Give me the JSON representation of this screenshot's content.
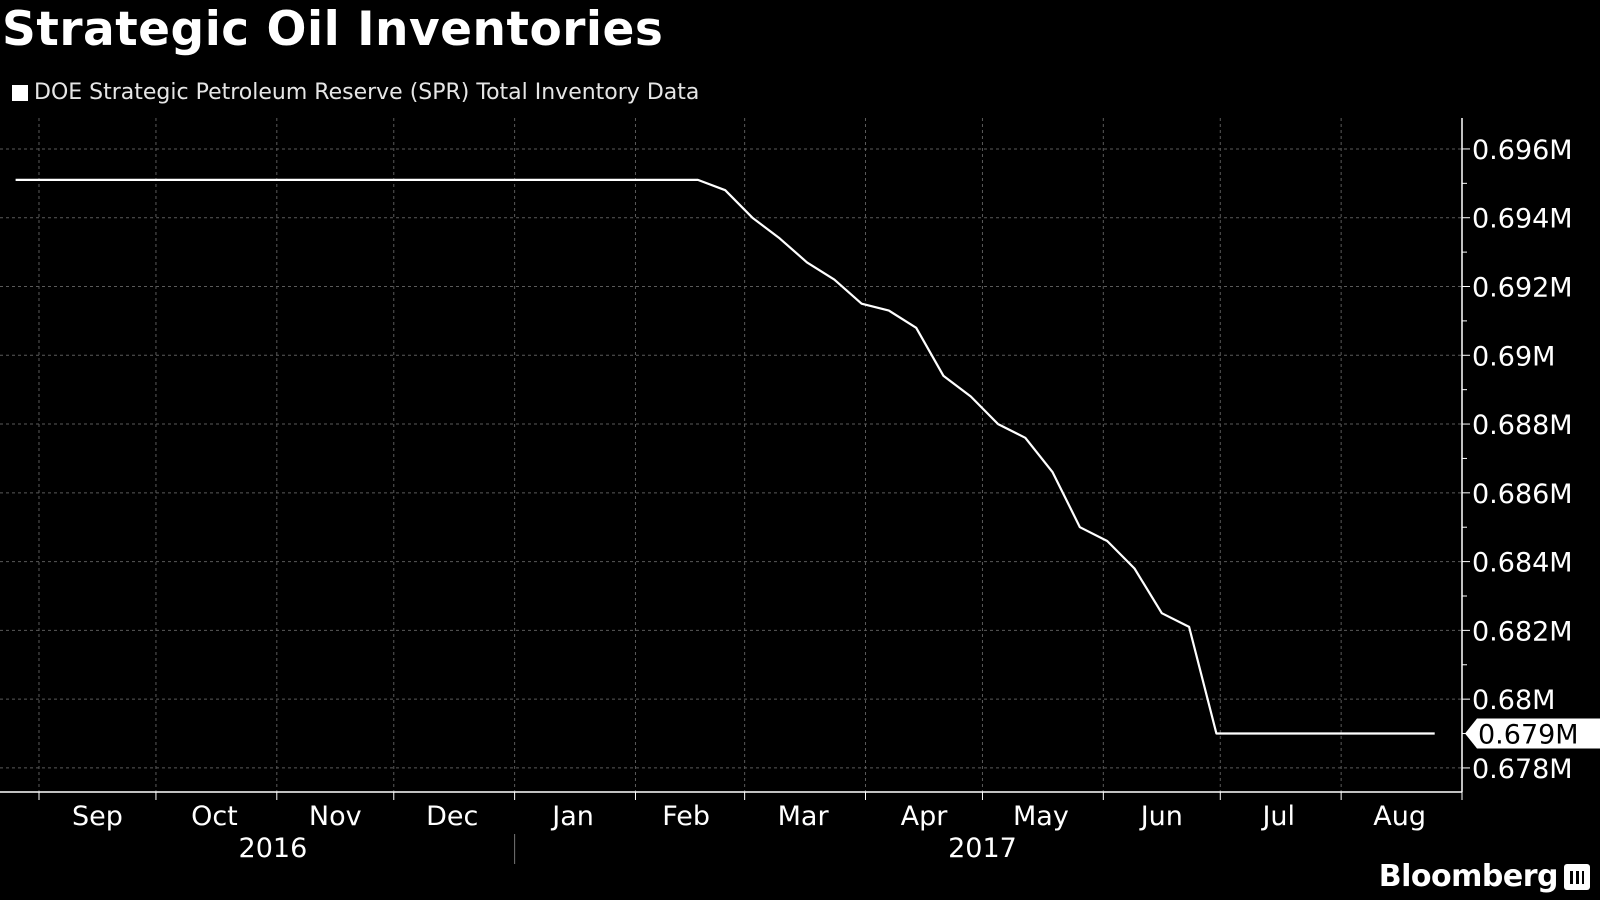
{
  "chart_data": {
    "type": "line",
    "title": "Strategic Oil Inventories",
    "legend_position": "top-left",
    "grid": true,
    "series": [
      {
        "name": "DOE Strategic Petroleum Reserve (SPR) Total Inventory Data",
        "color": "#ffffff",
        "points": [
          {
            "x": "2016-08-26",
            "y": 0.6951
          },
          {
            "x": "2017-02-17",
            "y": 0.6951
          },
          {
            "x": "2017-02-24",
            "y": 0.6948
          },
          {
            "x": "2017-03-03",
            "y": 0.694
          },
          {
            "x": "2017-03-10",
            "y": 0.6934
          },
          {
            "x": "2017-03-17",
            "y": 0.6927
          },
          {
            "x": "2017-03-24",
            "y": 0.6922
          },
          {
            "x": "2017-03-31",
            "y": 0.6915
          },
          {
            "x": "2017-04-07",
            "y": 0.6913
          },
          {
            "x": "2017-04-14",
            "y": 0.6908
          },
          {
            "x": "2017-04-21",
            "y": 0.6894
          },
          {
            "x": "2017-04-28",
            "y": 0.6888
          },
          {
            "x": "2017-05-05",
            "y": 0.688
          },
          {
            "x": "2017-05-12",
            "y": 0.6876
          },
          {
            "x": "2017-05-19",
            "y": 0.6866
          },
          {
            "x": "2017-05-26",
            "y": 0.685
          },
          {
            "x": "2017-06-02",
            "y": 0.6846
          },
          {
            "x": "2017-06-09",
            "y": 0.6838
          },
          {
            "x": "2017-06-16",
            "y": 0.6825
          },
          {
            "x": "2017-06-23",
            "y": 0.6821
          },
          {
            "x": "2017-06-30",
            "y": 0.679
          },
          {
            "x": "2017-08-25",
            "y": 0.679
          }
        ]
      }
    ],
    "x_axis": {
      "range": [
        "2016-08-22",
        "2017-09-01"
      ],
      "month_ticks": [
        "2016-09-01",
        "2016-10-01",
        "2016-11-01",
        "2016-12-01",
        "2017-01-01",
        "2017-02-01",
        "2017-03-01",
        "2017-04-01",
        "2017-05-01",
        "2017-06-01",
        "2017-07-01",
        "2017-08-01",
        "2017-09-01"
      ],
      "month_labels": [
        {
          "label": "Sep",
          "at": "2016-09-16"
        },
        {
          "label": "Oct",
          "at": "2016-10-16"
        },
        {
          "label": "Nov",
          "at": "2016-11-16"
        },
        {
          "label": "Dec",
          "at": "2016-12-16"
        },
        {
          "label": "Jan",
          "at": "2017-01-16"
        },
        {
          "label": "Feb",
          "at": "2017-02-14"
        },
        {
          "label": "Mar",
          "at": "2017-03-16"
        },
        {
          "label": "Apr",
          "at": "2017-04-16"
        },
        {
          "label": "May",
          "at": "2017-05-16"
        },
        {
          "label": "Jun",
          "at": "2017-06-16"
        },
        {
          "label": "Jul",
          "at": "2017-07-16"
        },
        {
          "label": "Aug",
          "at": "2017-08-16"
        }
      ],
      "year_labels": [
        {
          "label": "2016",
          "at": "2016-10-31"
        },
        {
          "label": "2017",
          "at": "2017-05-01"
        }
      ],
      "year_divider": "2017-01-01"
    },
    "y_axis": {
      "range": [
        0.6773,
        0.6969
      ],
      "ticks": [
        {
          "value": 0.696,
          "label": "0.696M"
        },
        {
          "value": 0.694,
          "label": "0.694M"
        },
        {
          "value": 0.692,
          "label": "0.692M"
        },
        {
          "value": 0.69,
          "label": "0.69M"
        },
        {
          "value": 0.688,
          "label": "0.688M"
        },
        {
          "value": 0.686,
          "label": "0.686M"
        },
        {
          "value": 0.684,
          "label": "0.684M"
        },
        {
          "value": 0.682,
          "label": "0.682M"
        },
        {
          "value": 0.68,
          "label": "0.68M"
        },
        {
          "value": 0.678,
          "label": "0.678M"
        }
      ],
      "position": "right",
      "last_value_label": {
        "value": 0.679,
        "label": "0.679M"
      }
    }
  },
  "branding": {
    "logo_text": "Bloomberg"
  }
}
